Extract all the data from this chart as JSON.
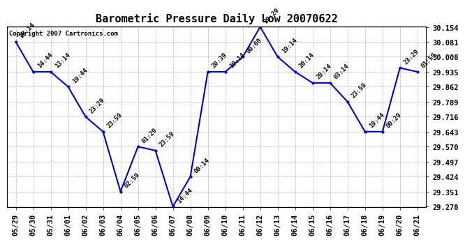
{
  "title": "Barometric Pressure Daily Low 20070622",
  "copyright_text": "Copyright 2007 Cartronics.com",
  "line_color": "#0000CC",
  "marker_color": "#0000CC",
  "background_color": "#ffffff",
  "grid_color": "#b0b0b0",
  "x_labels": [
    "05/29",
    "05/30",
    "05/31",
    "06/01",
    "06/02",
    "06/03",
    "06/04",
    "06/05",
    "06/06",
    "06/07",
    "06/08",
    "06/09",
    "06/10",
    "06/11",
    "06/12",
    "06/13",
    "06/14",
    "06/15",
    "06/16",
    "06/17",
    "06/18",
    "06/19",
    "06/20",
    "06/21"
  ],
  "y_values": [
    30.081,
    29.935,
    29.935,
    29.862,
    29.716,
    29.643,
    29.351,
    29.57,
    29.551,
    29.278,
    29.424,
    29.935,
    29.935,
    30.008,
    30.154,
    30.008,
    29.935,
    29.881,
    29.881,
    29.789,
    29.643,
    29.643,
    29.954,
    29.935
  ],
  "time_labels": [
    "18:14",
    "14:44",
    "13:14",
    "19:44",
    "23:29",
    "23:59",
    "02:59",
    "01:29",
    "23:59",
    "14:44",
    "00:14",
    "20:39",
    "19:14",
    "00:00",
    "20:29",
    "19:14",
    "20:14",
    "20:14",
    "03:14",
    "23:59",
    "19:44",
    "00:29",
    "23:29",
    "01:59"
  ],
  "ylim_min": 29.278,
  "ylim_max": 30.154,
  "yticks": [
    29.278,
    29.351,
    29.424,
    29.497,
    29.57,
    29.643,
    29.716,
    29.789,
    29.862,
    29.935,
    30.008,
    30.081,
    30.154
  ],
  "title_fontsize": 11,
  "tick_fontsize": 7.5,
  "annotation_fontsize": 6.5
}
